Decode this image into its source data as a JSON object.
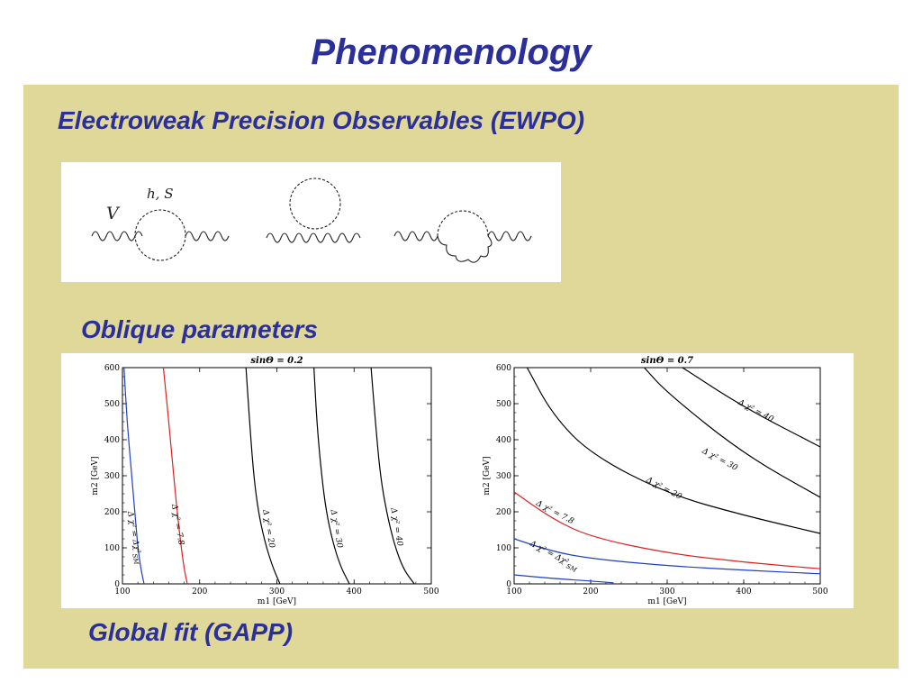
{
  "slide": {
    "title": "Phenomenology",
    "headings": {
      "ewpo": "Electroweak Precision Observables (EWPO)",
      "oblique": "Oblique parameters",
      "gapp": "Global fit (GAPP)"
    }
  },
  "feynman": {
    "label_boson": "V",
    "label_loop": "h,  S"
  },
  "chart_data": [
    {
      "type": "line",
      "title": "sinΘ = 0.2",
      "xlabel": "m1 [GeV]",
      "ylabel": "m2 [GeV]",
      "xlim": [
        100,
        500
      ],
      "ylim": [
        0,
        600
      ],
      "xticks": [
        "100",
        "200",
        "300",
        "400",
        "500"
      ],
      "yticks": [
        "0",
        "100",
        "200",
        "300",
        "400",
        "500",
        "600"
      ],
      "series": [
        {
          "name": "Δχ² = Δχ²SM",
          "color": "#2040c0",
          "points": [
            [
              102,
              600
            ],
            [
              106,
              450
            ],
            [
              112,
              300
            ],
            [
              116,
              200
            ],
            [
              120,
              100
            ],
            [
              124,
              40
            ],
            [
              128,
              0
            ]
          ]
        },
        {
          "name": "Δχ² = 7.8",
          "color": "#e02020",
          "points": [
            [
              153,
              600
            ],
            [
              160,
              450
            ],
            [
              165,
              330
            ],
            [
              170,
              220
            ],
            [
              175,
              120
            ],
            [
              180,
              40
            ],
            [
              184,
              0
            ]
          ]
        },
        {
          "name": "Δχ² = 20",
          "color": "#000000",
          "points": [
            [
              260,
              600
            ],
            [
              265,
              440
            ],
            [
              270,
              300
            ],
            [
              276,
              200
            ],
            [
              284,
              120
            ],
            [
              294,
              50
            ],
            [
              304,
              0
            ]
          ]
        },
        {
          "name": "Δχ² = 30",
          "color": "#000000",
          "points": [
            [
              348,
              600
            ],
            [
              352,
              440
            ],
            [
              358,
              300
            ],
            [
              364,
              200
            ],
            [
              372,
              120
            ],
            [
              382,
              50
            ],
            [
              394,
              0
            ]
          ]
        },
        {
          "name": "Δχ² = 40",
          "color": "#000000",
          "points": [
            [
              422,
              600
            ],
            [
              428,
              440
            ],
            [
              434,
              300
            ],
            [
              442,
              200
            ],
            [
              452,
              110
            ],
            [
              464,
              40
            ],
            [
              478,
              0
            ]
          ]
        }
      ],
      "labels": [
        {
          "text": "Δ χ² = Δχ²",
          "sub": "SM",
          "x": 107,
          "y": 200
        },
        {
          "text": "Δ χ² = 7.8",
          "x": 164,
          "y": 220
        },
        {
          "text": "Δ χ² = 20",
          "x": 282,
          "y": 205
        },
        {
          "text": "Δ χ² = 30",
          "x": 370,
          "y": 205
        },
        {
          "text": "Δ χ² = 40",
          "x": 448,
          "y": 210
        }
      ]
    },
    {
      "type": "line",
      "title": "sinΘ = 0.7",
      "xlabel": "m1 [GeV]",
      "ylabel": "m2 [GeV]",
      "xlim": [
        100,
        500
      ],
      "ylim": [
        0,
        600
      ],
      "xticks": [
        "100",
        "200",
        "300",
        "400",
        "500"
      ],
      "yticks": [
        "0",
        "100",
        "200",
        "300",
        "400",
        "500",
        "600"
      ],
      "series": [
        {
          "name": "Δχ² = Δχ²SM (lower)",
          "color": "#2040c0",
          "points": [
            [
              100,
              25
            ],
            [
              150,
              15
            ],
            [
              200,
              8
            ],
            [
              230,
              3
            ]
          ]
        },
        {
          "name": "Δχ² = Δχ²SM",
          "color": "#2040c0",
          "points": [
            [
              100,
              125
            ],
            [
              150,
              90
            ],
            [
              200,
              70
            ],
            [
              300,
              50
            ],
            [
              400,
              38
            ],
            [
              500,
              28
            ]
          ]
        },
        {
          "name": "Δχ² = 7.8",
          "color": "#e02020",
          "points": [
            [
              100,
              255
            ],
            [
              150,
              180
            ],
            [
              200,
              130
            ],
            [
              300,
              85
            ],
            [
              400,
              60
            ],
            [
              500,
              42
            ]
          ]
        },
        {
          "name": "Δχ² = 20",
          "color": "#000000",
          "points": [
            [
              117,
              600
            ],
            [
              150,
              470
            ],
            [
              200,
              360
            ],
            [
              300,
              250
            ],
            [
              400,
              190
            ],
            [
              500,
              140
            ]
          ]
        },
        {
          "name": "Δχ² = 30",
          "color": "#000000",
          "points": [
            [
              270,
              600
            ],
            [
              300,
              530
            ],
            [
              400,
              360
            ],
            [
              500,
              240
            ]
          ]
        },
        {
          "name": "Δχ² = 40",
          "color": "#000000",
          "points": [
            [
              320,
              600
            ],
            [
              400,
              490
            ],
            [
              500,
              380
            ]
          ]
        }
      ],
      "labels": [
        {
          "text": "Δ χ² = Δχ²",
          "sub": "SM",
          "x": 120,
          "y": 108
        },
        {
          "text": "Δ χ² = 7.8",
          "x": 128,
          "y": 220
        },
        {
          "text": "Δ χ² = 20",
          "x": 272,
          "y": 285
        },
        {
          "text": "Δ χ² = 30",
          "x": 345,
          "y": 365
        },
        {
          "text": "Δ χ² = 40",
          "x": 392,
          "y": 500
        }
      ]
    }
  ]
}
